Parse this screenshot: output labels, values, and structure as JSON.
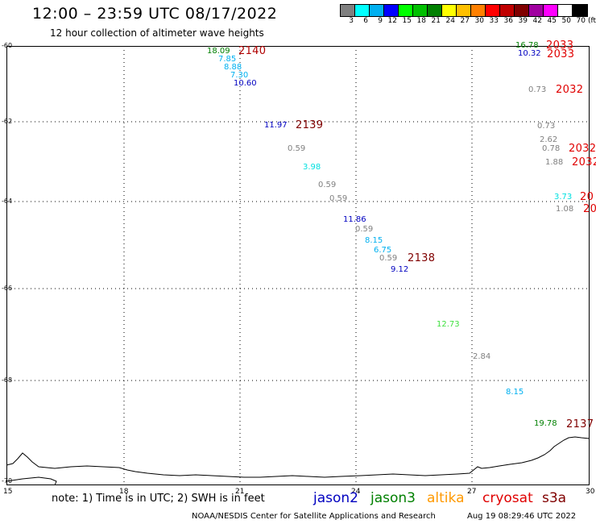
{
  "header": {
    "title": "12:00 – 23:59 UTC 08/17/2022",
    "subtitle": "12 hour collection of altimeter wave heights"
  },
  "colorbar": {
    "colors": [
      "#808080",
      "#00ffff",
      "#00b0f0",
      "#0000ff",
      "#00ff00",
      "#00c000",
      "#008000",
      "#ffff00",
      "#ffc000",
      "#ff8000",
      "#ff0000",
      "#c00000",
      "#800000",
      "#a000a0",
      "#ff00ff",
      "#ffffff",
      "#000000"
    ],
    "labels": [
      "3",
      "6",
      "9",
      "12",
      "15",
      "18",
      "21",
      "24",
      "27",
      "30",
      "33",
      "36",
      "39",
      "42",
      "45",
      "50",
      "70",
      "(ft)"
    ]
  },
  "axes": {
    "y_labels": [
      "-60",
      "-62",
      "-64",
      "-66",
      "-68",
      "-70"
    ],
    "x_labels": [
      "15",
      "18",
      "21",
      "24",
      "27",
      "30"
    ]
  },
  "observations": [
    {
      "text": "18.09",
      "color": "#008000"
    },
    {
      "text": "7.85",
      "color": "#00b0f0"
    },
    {
      "text": "8.88",
      "color": "#00b0f0"
    },
    {
      "text": "7.30",
      "color": "#00b0f0"
    },
    {
      "text": "10.60",
      "color": "#0000c0"
    },
    {
      "text": "11.97",
      "color": "#0000c0"
    },
    {
      "text": "0.59",
      "color": "#808080"
    },
    {
      "text": "3.98",
      "color": "#00e0e0"
    },
    {
      "text": "0.59",
      "color": "#808080"
    },
    {
      "text": "0.59",
      "color": "#808080"
    },
    {
      "text": "11.86",
      "color": "#0000c0"
    },
    {
      "text": "0.59",
      "color": "#808080"
    },
    {
      "text": "8.15",
      "color": "#00b0f0"
    },
    {
      "text": "6.75",
      "color": "#00b0f0"
    },
    {
      "text": "0.59",
      "color": "#808080"
    },
    {
      "text": "9.12",
      "color": "#0000c0"
    },
    {
      "text": "12.73",
      "color": "#40e040"
    },
    {
      "text": "2.84",
      "color": "#808080"
    },
    {
      "text": "8.15",
      "color": "#00b0f0"
    },
    {
      "text": "19.78",
      "color": "#008000"
    },
    {
      "text": "16.78",
      "color": "#008000"
    },
    {
      "text": "10.32",
      "color": "#0000c0"
    },
    {
      "text": "0.73",
      "color": "#808080"
    },
    {
      "text": "0.73",
      "color": "#808080"
    },
    {
      "text": "2.62",
      "color": "#808080"
    },
    {
      "text": "0.78",
      "color": "#808080"
    },
    {
      "text": "1.88",
      "color": "#808080"
    },
    {
      "text": "3.73",
      "color": "#00e0e0"
    },
    {
      "text": "1.08",
      "color": "#808080"
    }
  ],
  "pass_numbers": [
    {
      "text": "2140",
      "color": "#b00000"
    },
    {
      "text": "2139",
      "color": "#800000"
    },
    {
      "text": "2138",
      "color": "#800000"
    },
    {
      "text": "2137",
      "color": "#800000"
    },
    {
      "text": "2033",
      "color": "#e00000"
    },
    {
      "text": "2033",
      "color": "#e00000"
    },
    {
      "text": "2032",
      "color": "#e00000"
    },
    {
      "text": "2032",
      "color": "#e00000"
    },
    {
      "text": "2032",
      "color": "#e00000"
    },
    {
      "text": "20",
      "color": "#e00000"
    },
    {
      "text": "20",
      "color": "#e00000"
    }
  ],
  "footer": {
    "note": "note: 1) Time is in UTC; 2) SWH is in feet",
    "satellites": [
      {
        "name": "jason2",
        "color": "#0000c0"
      },
      {
        "name": "jason3",
        "color": "#008000"
      },
      {
        "name": "altika",
        "color": "#ff9900"
      },
      {
        "name": "cryosat",
        "color": "#e00000"
      },
      {
        "name": "s3a",
        "color": "#800000"
      }
    ],
    "credit": "NOAA/NESDIS Center for Satellite Applications and Research",
    "timestamp": "Aug 19 08:29:46 UTC 2022"
  }
}
